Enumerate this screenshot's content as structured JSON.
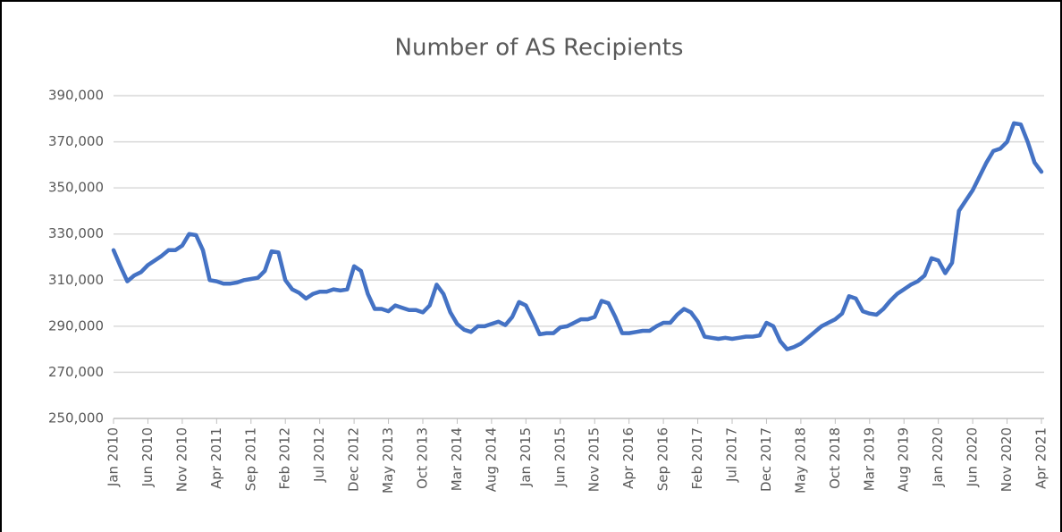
{
  "chart_data": {
    "type": "line",
    "title": "Number of AS Recipients",
    "categories": [
      "Jan 2010",
      null,
      null,
      null,
      null,
      "Jun 2010",
      null,
      null,
      null,
      null,
      "Nov 2010",
      null,
      null,
      null,
      null,
      "Apr 2011",
      null,
      null,
      null,
      null,
      "Sep 2011",
      null,
      null,
      null,
      null,
      "Feb 2012",
      null,
      null,
      null,
      null,
      "Jul 2012",
      null,
      null,
      null,
      null,
      "Dec 2012",
      null,
      null,
      null,
      null,
      "May 2013",
      null,
      null,
      null,
      null,
      "Oct 2013",
      null,
      null,
      null,
      null,
      "Mar 2014",
      null,
      null,
      null,
      null,
      "Aug 2014",
      null,
      null,
      null,
      null,
      "Jan 2015",
      null,
      null,
      null,
      null,
      "Jun 2015",
      null,
      null,
      null,
      null,
      "Nov 2015",
      null,
      null,
      null,
      null,
      "Apr 2016",
      null,
      null,
      null,
      null,
      "Sep 2016",
      null,
      null,
      null,
      null,
      "Feb 2017",
      null,
      null,
      null,
      null,
      "Jul 2017",
      null,
      null,
      null,
      null,
      "Dec 2017",
      null,
      null,
      null,
      null,
      "May 2018",
      null,
      null,
      null,
      null,
      "Oct 2018",
      null,
      null,
      null,
      null,
      "Mar 2019",
      null,
      null,
      null,
      null,
      "Aug 2019",
      null,
      null,
      null,
      null,
      "Jan 2020",
      null,
      null,
      null,
      null,
      "Jun 2020",
      null,
      null,
      null,
      null,
      "Nov 2020",
      null,
      null,
      null,
      null,
      "Apr 2021"
    ],
    "series": [
      {
        "name": "AS Recipients",
        "color": "#4472c4",
        "values": [
          323000,
          316000,
          309500,
          312000,
          313500,
          316500,
          318500,
          320500,
          323000,
          323000,
          325000,
          330000,
          329500,
          323000,
          310000,
          309500,
          308500,
          308500,
          309000,
          310000,
          310500,
          311000,
          314000,
          322500,
          322000,
          310000,
          306000,
          304500,
          302000,
          304000,
          305000,
          305000,
          306000,
          305500,
          306000,
          316000,
          314000,
          304000,
          297500,
          297500,
          296500,
          299000,
          298000,
          297000,
          297000,
          296000,
          299000,
          308000,
          304000,
          296000,
          291000,
          288500,
          287500,
          290000,
          290000,
          291000,
          292000,
          290500,
          294000,
          300500,
          299000,
          293000,
          286500,
          287000,
          287000,
          289500,
          290000,
          291500,
          293000,
          293000,
          294000,
          301000,
          300000,
          294000,
          287000,
          287000,
          287500,
          288000,
          288000,
          290000,
          291500,
          291500,
          295000,
          297500,
          296000,
          292000,
          285500,
          285000,
          284500,
          285000,
          284500,
          285000,
          285500,
          285500,
          286000,
          291500,
          290000,
          283500,
          280000,
          281000,
          282500,
          285000,
          287500,
          290000,
          291500,
          293000,
          295500,
          303000,
          302000,
          296500,
          295500,
          295000,
          297500,
          301000,
          304000,
          306000,
          308000,
          309500,
          312000,
          319500,
          318500,
          313000,
          317500,
          340000,
          344500,
          349000,
          355000,
          361000,
          366000,
          367000,
          370000,
          378000,
          377500,
          370000,
          361000,
          357000
        ]
      }
    ],
    "ylim": [
      250000,
      390000
    ],
    "yticks": [
      {
        "value": 250000,
        "label": "250,000"
      },
      {
        "value": 270000,
        "label": "270,000"
      },
      {
        "value": 290000,
        "label": "290,000"
      },
      {
        "value": 310000,
        "label": "310,000"
      },
      {
        "value": 330000,
        "label": "330,000"
      },
      {
        "value": 350000,
        "label": "350,000"
      },
      {
        "value": 370000,
        "label": "370,000"
      },
      {
        "value": 390000,
        "label": "390,000"
      }
    ],
    "grid": true
  }
}
